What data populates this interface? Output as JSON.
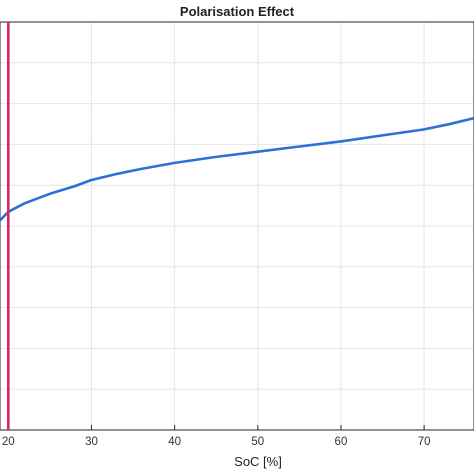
{
  "chart_data": {
    "type": "line",
    "title": "Polarisation Effect",
    "xlabel": "SoC [%]",
    "ylabel": "",
    "xlim": [
      19,
      76
    ],
    "x_ticks": [
      20,
      30,
      40,
      50,
      60,
      70
    ],
    "grid": true,
    "legend": "none",
    "series": [
      {
        "color": "#2f6fd6",
        "x": [
          19,
          20,
          22,
          25,
          28,
          30,
          33,
          36,
          40,
          45,
          50,
          55,
          60,
          65,
          70,
          73,
          76
        ],
        "y": [
          0.244,
          0.254,
          0.264,
          0.275,
          0.284,
          0.291,
          0.298,
          0.304,
          0.311,
          0.318,
          0.324,
          0.33,
          0.336,
          0.343,
          0.35,
          0.356,
          0.363
        ]
      }
    ],
    "reference_line": {
      "x": 20,
      "color": "#e0245e"
    },
    "ylim": [
      0.0,
      0.475
    ]
  }
}
